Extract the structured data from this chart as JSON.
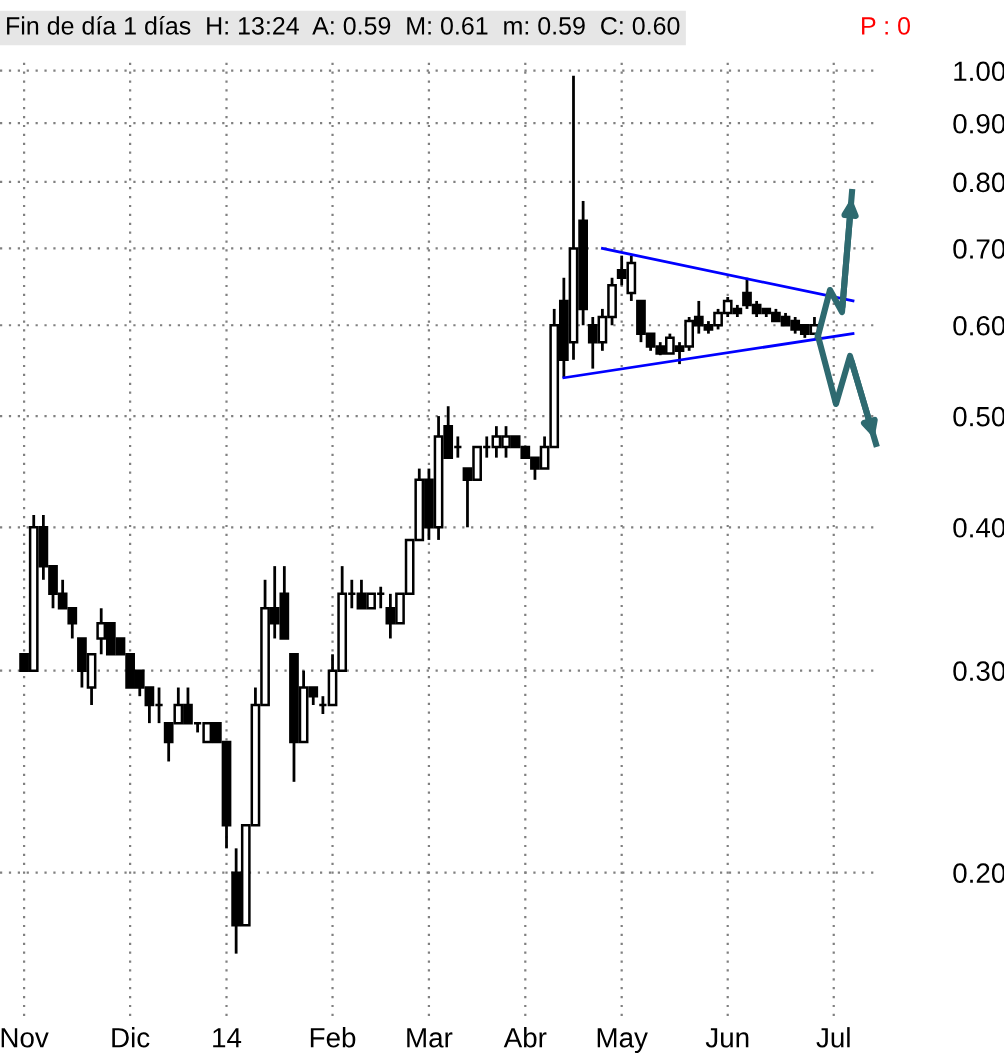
{
  "chart_data": {
    "type": "candlestick",
    "title": "Fin de día 1 días  H: 13:24  A: 0.59  M: 0.61  m: 0.59  C: 0.60",
    "annotations": [
      "P : 0"
    ],
    "categories": [
      "Nov",
      null,
      null,
      null,
      null,
      null,
      null,
      null,
      null,
      null,
      null,
      "Dic",
      null,
      null,
      null,
      null,
      null,
      null,
      null,
      null,
      null,
      "14",
      null,
      null,
      null,
      null,
      null,
      null,
      null,
      null,
      null,
      null,
      "Feb",
      null,
      null,
      null,
      null,
      null,
      null,
      null,
      null,
      null,
      "Mar",
      null,
      null,
      null,
      null,
      null,
      null,
      null,
      null,
      null,
      "Abr",
      null,
      null,
      null,
      null,
      null,
      null,
      null,
      null,
      null,
      "May",
      null,
      null,
      null,
      null,
      null,
      null,
      null,
      null,
      null,
      null,
      "Jun",
      null,
      null,
      null,
      null,
      null,
      null,
      null,
      null,
      null,
      null,
      "Jul",
      null,
      null,
      null,
      null,
      null
    ],
    "ohlc": [
      [
        0.31,
        0.31,
        0.3,
        0.3
      ],
      [
        0.3,
        0.41,
        0.3,
        0.4
      ],
      [
        0.4,
        0.41,
        0.36,
        0.37
      ],
      [
        0.37,
        0.37,
        0.34,
        0.35
      ],
      [
        0.35,
        0.36,
        0.34,
        0.34
      ],
      [
        0.34,
        0.34,
        0.32,
        0.33
      ],
      [
        0.32,
        0.32,
        0.29,
        0.3
      ],
      [
        0.29,
        0.31,
        0.28,
        0.31
      ],
      [
        0.32,
        0.34,
        0.31,
        0.33
      ],
      [
        0.33,
        0.33,
        0.31,
        0.31
      ],
      [
        0.32,
        0.32,
        0.31,
        0.31
      ],
      [
        0.31,
        0.31,
        0.29,
        0.29
      ],
      [
        0.3,
        0.3,
        0.285,
        0.29
      ],
      [
        0.29,
        0.29,
        0.27,
        0.28
      ],
      [
        0.28,
        0.29,
        0.27,
        0.28
      ],
      [
        0.27,
        0.27,
        0.25,
        0.26
      ],
      [
        0.27,
        0.29,
        0.27,
        0.28
      ],
      [
        0.28,
        0.29,
        0.27,
        0.27
      ],
      [
        0.27,
        0.27,
        0.265,
        0.27
      ],
      [
        0.26,
        0.27,
        0.26,
        0.27
      ],
      [
        0.27,
        0.27,
        0.26,
        0.26
      ],
      [
        0.26,
        0.26,
        0.21,
        0.22
      ],
      [
        0.2,
        0.21,
        0.17,
        0.18
      ],
      [
        0.18,
        0.22,
        0.18,
        0.22
      ],
      [
        0.22,
        0.29,
        0.22,
        0.28
      ],
      [
        0.28,
        0.36,
        0.28,
        0.34
      ],
      [
        0.34,
        0.37,
        0.32,
        0.33
      ],
      [
        0.35,
        0.37,
        0.32,
        0.32
      ],
      [
        0.31,
        0.31,
        0.24,
        0.26
      ],
      [
        0.26,
        0.3,
        0.26,
        0.29
      ],
      [
        0.29,
        0.29,
        0.28,
        0.285
      ],
      [
        0.28,
        0.285,
        0.275,
        0.28
      ],
      [
        0.28,
        0.31,
        0.28,
        0.3
      ],
      [
        0.3,
        0.37,
        0.3,
        0.35
      ],
      [
        0.35,
        0.36,
        0.34,
        0.35
      ],
      [
        0.35,
        0.36,
        0.34,
        0.34
      ],
      [
        0.34,
        0.35,
        0.34,
        0.35
      ],
      [
        0.35,
        0.355,
        0.34,
        0.35
      ],
      [
        0.34,
        0.35,
        0.32,
        0.33
      ],
      [
        0.33,
        0.35,
        0.33,
        0.35
      ],
      [
        0.35,
        0.39,
        0.35,
        0.39
      ],
      [
        0.39,
        0.45,
        0.39,
        0.44
      ],
      [
        0.44,
        0.45,
        0.39,
        0.4
      ],
      [
        0.4,
        0.5,
        0.39,
        0.48
      ],
      [
        0.49,
        0.51,
        0.46,
        0.46
      ],
      [
        0.47,
        0.48,
        0.46,
        0.47
      ],
      [
        0.45,
        0.45,
        0.4,
        0.44
      ],
      [
        0.44,
        0.47,
        0.44,
        0.47
      ],
      [
        0.47,
        0.48,
        0.46,
        0.47
      ],
      [
        0.47,
        0.49,
        0.46,
        0.48
      ],
      [
        0.47,
        0.49,
        0.46,
        0.48
      ],
      [
        0.48,
        0.48,
        0.47,
        0.47
      ],
      [
        0.47,
        0.47,
        0.46,
        0.46
      ],
      [
        0.46,
        0.46,
        0.44,
        0.45
      ],
      [
        0.45,
        0.48,
        0.45,
        0.47
      ],
      [
        0.47,
        0.62,
        0.47,
        0.6
      ],
      [
        0.63,
        0.66,
        0.54,
        0.56
      ],
      [
        0.58,
        0.99,
        0.56,
        0.7
      ],
      [
        0.74,
        0.77,
        0.6,
        0.62
      ],
      [
        0.6,
        0.61,
        0.55,
        0.58
      ],
      [
        0.58,
        0.62,
        0.57,
        0.61
      ],
      [
        0.61,
        0.66,
        0.6,
        0.65
      ],
      [
        0.67,
        0.69,
        0.65,
        0.66
      ],
      [
        0.64,
        0.69,
        0.63,
        0.68
      ],
      [
        0.63,
        0.63,
        0.58,
        0.59
      ],
      [
        0.59,
        0.59,
        0.57,
        0.575
      ],
      [
        0.575,
        0.58,
        0.565,
        0.567
      ],
      [
        0.567,
        0.59,
        0.567,
        0.585
      ],
      [
        0.575,
        0.58,
        0.555,
        0.57
      ],
      [
        0.575,
        0.61,
        0.57,
        0.605
      ],
      [
        0.61,
        0.63,
        0.59,
        0.6
      ],
      [
        0.6,
        0.605,
        0.59,
        0.595
      ],
      [
        0.6,
        0.62,
        0.595,
        0.615
      ],
      [
        0.615,
        0.635,
        0.61,
        0.63
      ],
      [
        0.62,
        0.625,
        0.61,
        0.615
      ],
      [
        0.64,
        0.66,
        0.62,
        0.625
      ],
      [
        0.625,
        0.63,
        0.61,
        0.615
      ],
      [
        0.62,
        0.62,
        0.61,
        0.615
      ],
      [
        0.615,
        0.62,
        0.605,
        0.605
      ],
      [
        0.61,
        0.615,
        0.6,
        0.6
      ],
      [
        0.605,
        0.61,
        0.59,
        0.595
      ],
      [
        0.6,
        0.6,
        0.585,
        0.59
      ],
      [
        0.59,
        0.61,
        0.59,
        0.6
      ],
      null,
      null,
      null,
      null,
      null,
      null,
      null
    ],
    "series": [
      {
        "type": "line",
        "color": "#0000ff",
        "values": [
          null,
          null,
          null,
          null,
          null,
          null,
          null,
          null,
          null,
          null,
          null,
          null,
          null,
          null,
          null,
          null,
          null,
          null,
          null,
          null,
          null,
          null,
          null,
          null,
          null,
          null,
          null,
          null,
          null,
          null,
          null,
          null,
          null,
          null,
          null,
          null,
          null,
          null,
          null,
          null,
          null,
          null,
          null,
          null,
          null,
          null,
          null,
          null,
          null,
          null,
          null,
          null,
          null,
          null,
          null,
          null,
          null,
          null,
          null,
          null,
          0.7,
          null,
          null,
          null,
          null,
          null,
          null,
          null,
          null,
          null,
          null,
          null,
          null,
          null,
          null,
          null,
          null,
          null,
          null,
          null,
          null,
          null,
          null,
          null,
          null,
          null,
          0.63,
          null,
          null,
          null
        ]
      },
      {
        "type": "line",
        "color": "#0000ff",
        "values": [
          null,
          null,
          null,
          null,
          null,
          null,
          null,
          null,
          null,
          null,
          null,
          null,
          null,
          null,
          null,
          null,
          null,
          null,
          null,
          null,
          null,
          null,
          null,
          null,
          null,
          null,
          null,
          null,
          null,
          null,
          null,
          null,
          null,
          null,
          null,
          null,
          null,
          null,
          null,
          null,
          null,
          null,
          null,
          null,
          null,
          null,
          null,
          null,
          null,
          null,
          null,
          null,
          null,
          null,
          null,
          null,
          0.54,
          null,
          null,
          null,
          null,
          null,
          null,
          null,
          null,
          null,
          null,
          null,
          null,
          null,
          null,
          null,
          null,
          null,
          null,
          null,
          null,
          null,
          null,
          null,
          null,
          null,
          null,
          null,
          null,
          null,
          0.59,
          null,
          null,
          null
        ]
      }
    ],
    "log": "y",
    "ylim": [
      0.15,
      1.03
    ],
    "yticks": [
      {
        "value": 0.2,
        "label": "0.20"
      },
      {
        "value": 0.3,
        "label": "0.30"
      },
      {
        "value": 0.4,
        "label": "0.40"
      },
      {
        "value": 0.5,
        "label": "0.50"
      },
      {
        "value": 0.6,
        "label": "0.60"
      },
      {
        "value": 0.7,
        "label": "0.70"
      },
      {
        "value": 0.8,
        "label": "0.80"
      },
      {
        "value": 0.9,
        "label": "0.90"
      },
      {
        "value": 1.0,
        "label": "1.00"
      }
    ],
    "grid": true
  }
}
